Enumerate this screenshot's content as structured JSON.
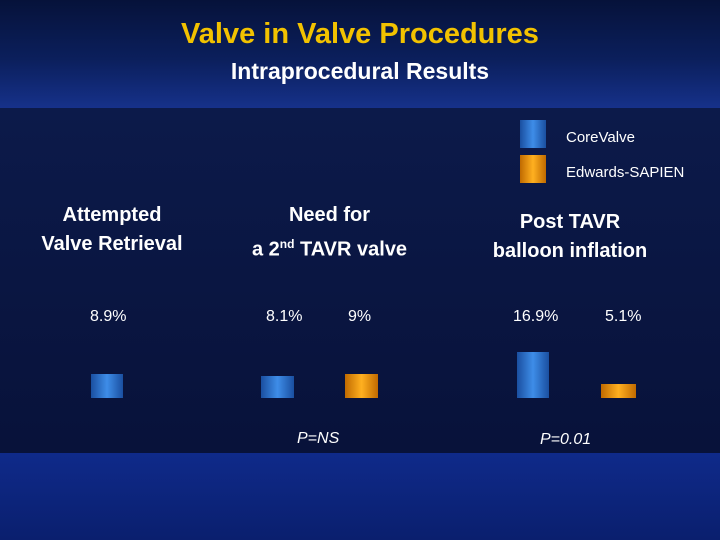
{
  "title": "Valve in Valve Procedures",
  "subtitle": "Intraprocedural Results",
  "legend": [
    {
      "label": "CoreValve",
      "color": "#2f6fd0"
    },
    {
      "label": "Edwards-SAPIEN",
      "color": "#f0a000"
    }
  ],
  "groups": [
    {
      "line1": "Attempted",
      "line2": "Valve Retrieval"
    },
    {
      "line1": "Need for",
      "line2_pre": "a 2",
      "line2_sup": "nd",
      "line2_post": " TAVR valve"
    },
    {
      "line1": "Post TAVR",
      "line2": "balloon inflation"
    }
  ],
  "p_values": [
    "P=NS",
    "P=0.01"
  ],
  "chart_data": {
    "type": "bar",
    "title": "Intraprocedural Results",
    "categories": [
      "Attempted Valve Retrieval",
      "Need for a 2nd TAVR valve",
      "Post TAVR balloon inflation"
    ],
    "series": [
      {
        "name": "CoreValve",
        "values": [
          8.9,
          8.1,
          16.9
        ],
        "labels": [
          "8.9%",
          "8.1%",
          "16.9%"
        ]
      },
      {
        "name": "Edwards-SAPIEN",
        "values": [
          null,
          9,
          5.1
        ],
        "labels": [
          null,
          "9%",
          "5.1%"
        ]
      }
    ],
    "colors": {
      "CoreValve": "#2f6fd0",
      "Edwards-SAPIEN": "#f0a000"
    }
  }
}
